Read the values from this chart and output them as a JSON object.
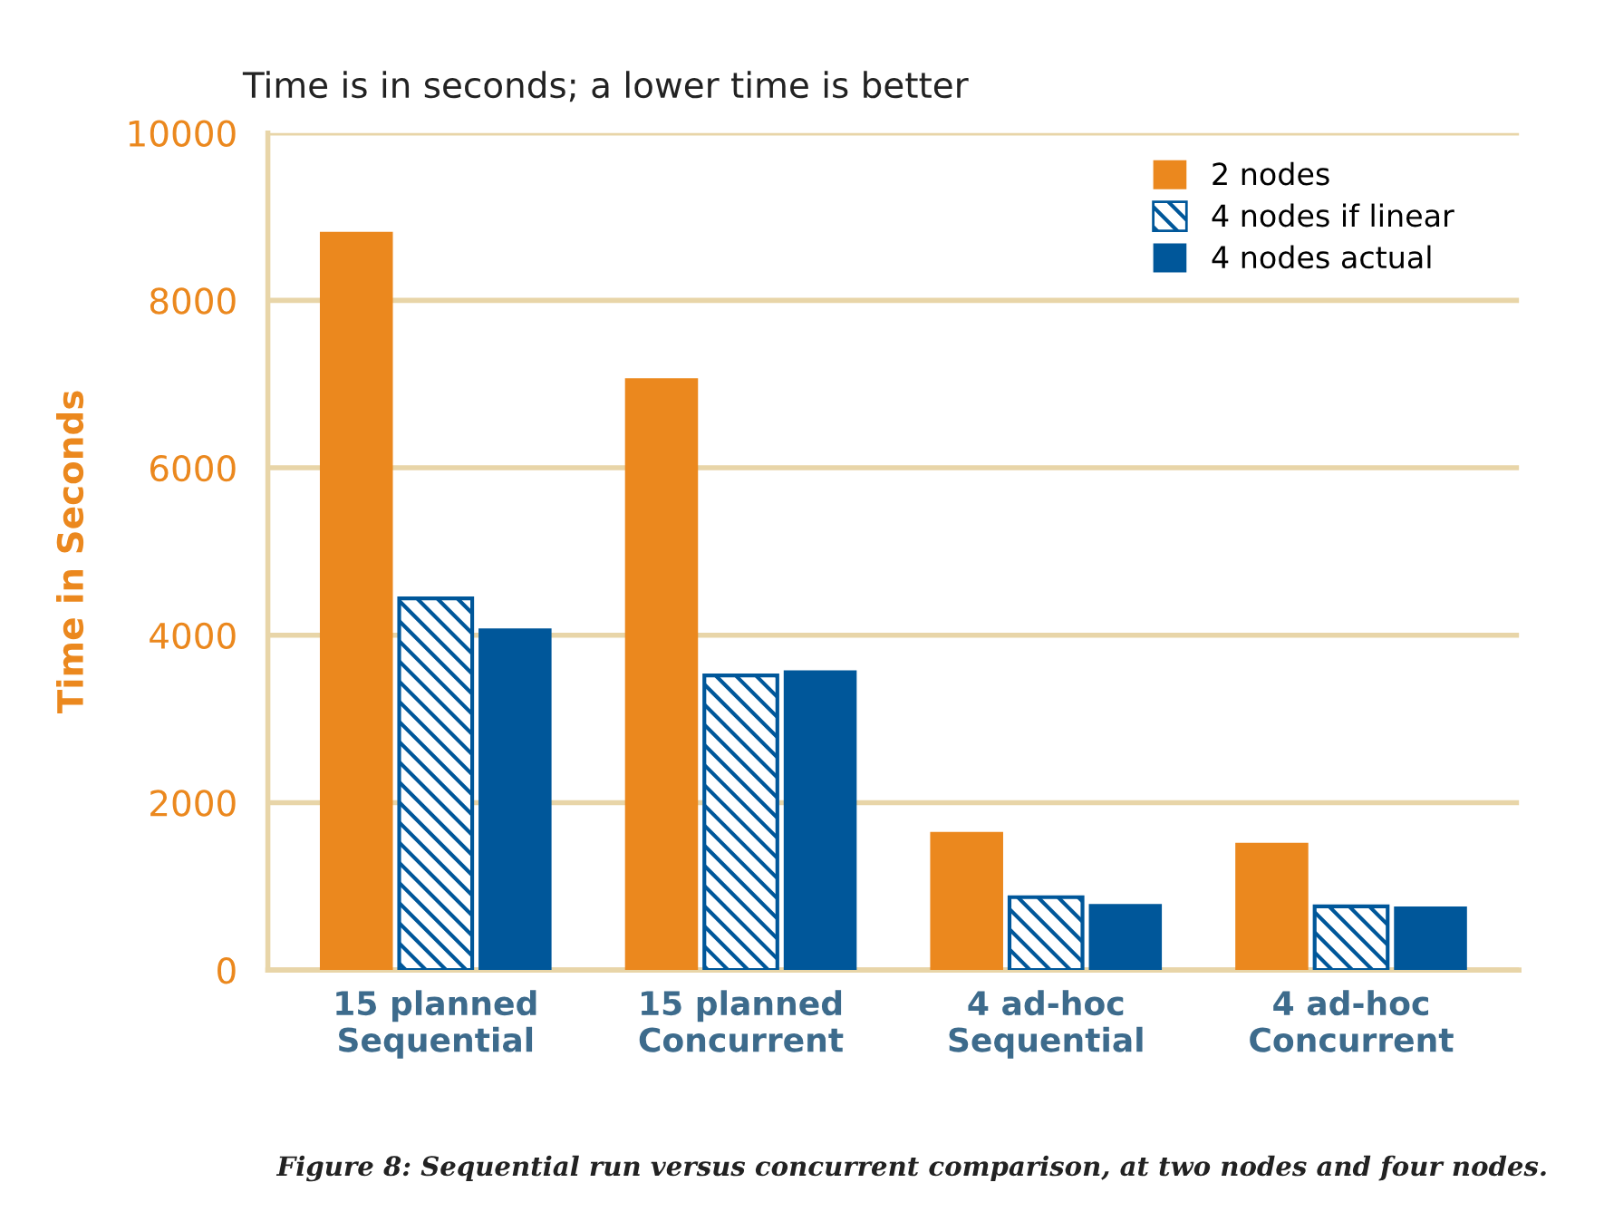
{
  "chart_data": {
    "type": "bar",
    "title": "Time is in seconds; a lower time is better",
    "ylabel": "Time in Seconds",
    "categories": [
      "15 planned\nSequential",
      "15 planned\nConcurrent",
      "4 ad-hoc\nSequential",
      "4 ad-hoc\nConcurrent"
    ],
    "series": [
      {
        "name": "2 nodes",
        "color": "#eb881e",
        "values": [
          8820,
          7070,
          1650,
          1520
        ]
      },
      {
        "name": "4 nodes if linear",
        "color": "#00579a",
        "values": [
          4440,
          3520,
          870,
          760
        ]
      },
      {
        "name": "4 nodes actual",
        "color": "#00579a",
        "values": [
          4080,
          3580,
          790,
          760
        ]
      }
    ],
    "ylim": [
      0,
      10000
    ],
    "yticks": [
      0,
      2000,
      4000,
      6000,
      8000,
      10000
    ],
    "grid": "y",
    "legend": "top right",
    "annotations": [
      "Figure 8: Sequential run versus concurrent comparison, at two nodes and four nodes."
    ]
  }
}
